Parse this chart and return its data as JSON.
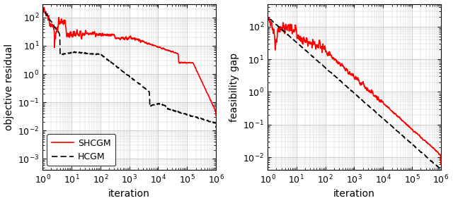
{
  "xlim": [
    1,
    1000000
  ],
  "ylim_left": [
    0.0004,
    300
  ],
  "ylim_right": [
    0.004,
    500
  ],
  "xlabel": "iteration",
  "ylabel_left": "objective residual",
  "ylabel_right": "feasibility gap",
  "shcgm_color": "#ff0000",
  "hcgm_color": "#000000",
  "shcgm_label": "SHCGM",
  "hcgm_label": "HCGM",
  "background_color": "#ffffff",
  "grid_color": "#c8c8c8"
}
